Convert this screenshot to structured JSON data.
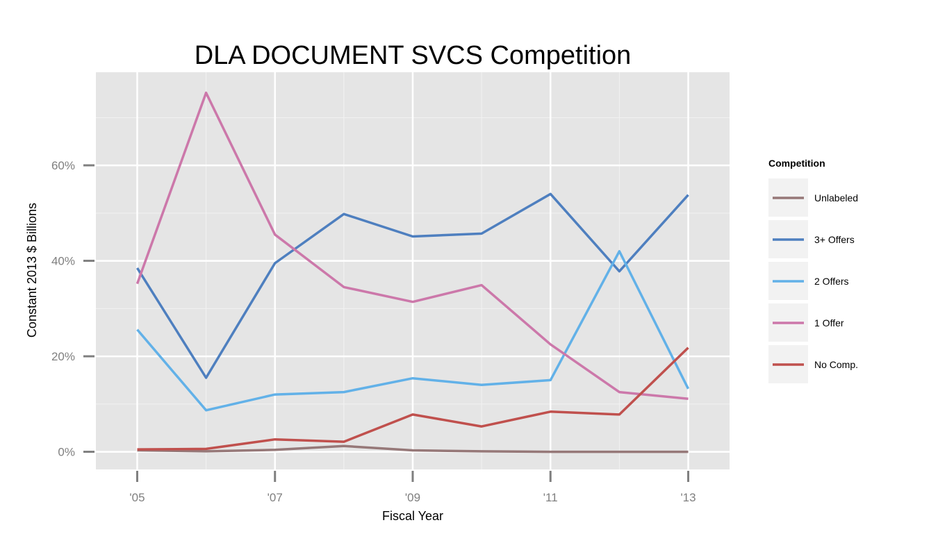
{
  "chart_data": {
    "type": "line",
    "title": "DLA DOCUMENT SVCS Competition",
    "xlabel": "Fiscal Year",
    "ylabel": "Constant 2013 $ Billions",
    "x": [
      2005,
      2006,
      2007,
      2008,
      2009,
      2010,
      2011,
      2012,
      2013
    ],
    "xticks": [
      2005,
      2007,
      2009,
      2011,
      2013
    ],
    "xtick_labels": [
      "'05",
      "'07",
      "'09",
      "'11",
      "'13"
    ],
    "xlim": [
      2004.4,
      2013.6
    ],
    "yticks": [
      0,
      20,
      40,
      60
    ],
    "ytick_labels": [
      "0%",
      "20%",
      "40%",
      "60%"
    ],
    "ylim": [
      -3.7,
      79.5
    ],
    "grid": true,
    "legend": {
      "title": "Competition",
      "placement": "right"
    },
    "series": [
      {
        "name": "Unlabeled",
        "color": "#967878",
        "values": [
          0.3,
          0.1,
          0.4,
          1.2,
          0.3,
          0.1,
          0.0,
          0.0,
          0.0
        ]
      },
      {
        "name": "3+ Offers",
        "color": "#4E7FBF",
        "values": [
          38.5,
          15.5,
          39.5,
          49.8,
          45.1,
          45.7,
          54.0,
          37.8,
          53.8
        ]
      },
      {
        "name": "2 Offers",
        "color": "#62B1E8",
        "values": [
          25.6,
          8.7,
          12.0,
          12.5,
          15.4,
          14.0,
          15.0,
          42.0,
          13.2
        ]
      },
      {
        "name": "1 Offer",
        "color": "#CC78AA",
        "values": [
          35.2,
          75.2,
          45.5,
          34.5,
          31.4,
          34.9,
          22.5,
          12.5,
          11.1
        ]
      },
      {
        "name": "No Comp.",
        "color": "#C0504D",
        "values": [
          0.5,
          0.6,
          2.6,
          2.1,
          7.8,
          5.3,
          8.4,
          7.8,
          21.8
        ]
      }
    ]
  }
}
